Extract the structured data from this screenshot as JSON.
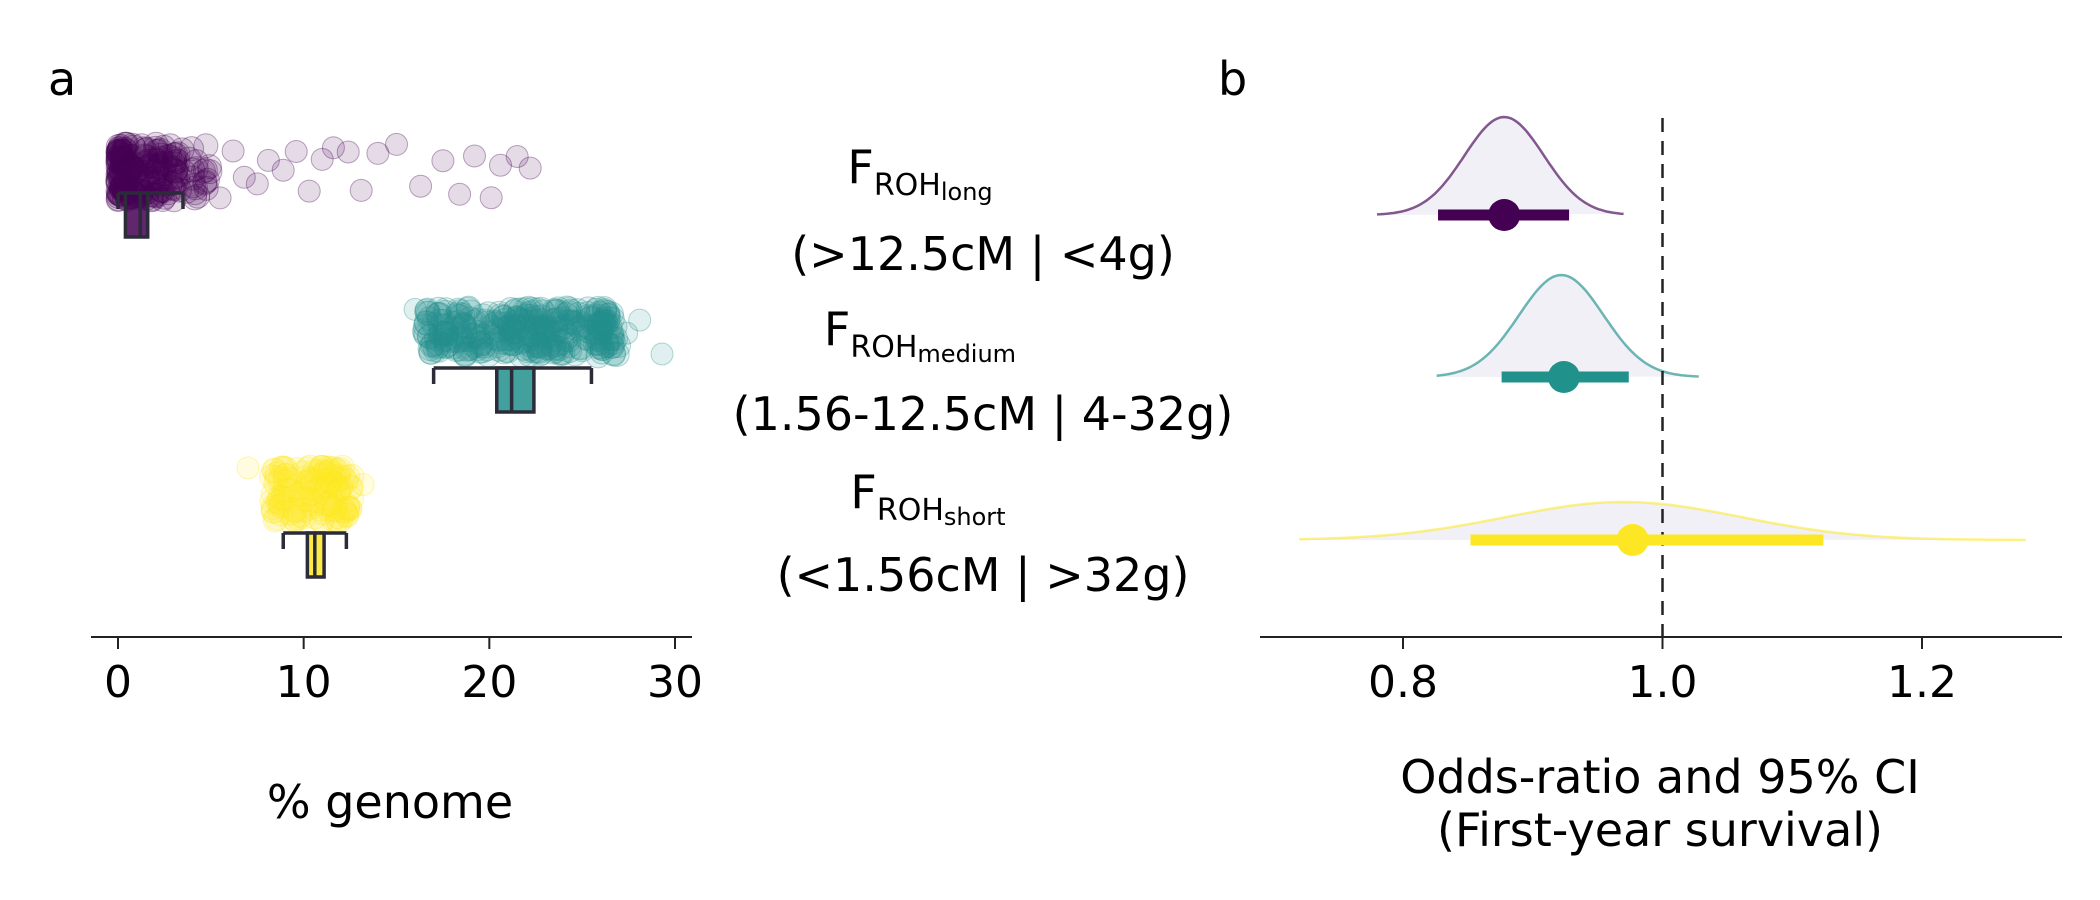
{
  "chart_data": [
    {
      "panel": "a",
      "type": "scatter",
      "xlabel": "% genome",
      "xticks": [
        0,
        10,
        20,
        30
      ],
      "xlim": [
        -1.5,
        31
      ],
      "grid": false,
      "series": [
        {
          "name": "FROH_long",
          "color": "#440154",
          "box": {
            "q1": 0.4,
            "median": 1.2,
            "q3": 1.6,
            "whisker_low": 0.0,
            "whisker_high": 3.5
          },
          "cluster_range": [
            0,
            5
          ],
          "tail_points": [
            5.5,
            6.2,
            6.8,
            7.5,
            8.1,
            8.9,
            9.6,
            10.3,
            11.0,
            11.6,
            12.4,
            13.1,
            14.0,
            15.0,
            16.3,
            17.5,
            18.4,
            19.2,
            20.1,
            20.6,
            21.5,
            22.2
          ]
        },
        {
          "name": "FROH_medium",
          "color": "#21918c",
          "box": {
            "q1": 20.4,
            "median": 21.2,
            "q3": 22.4,
            "whisker_low": 17.0,
            "whisker_high": 25.5
          },
          "cluster_range": [
            16.5,
            27
          ],
          "tail_points": [
            16.0,
            27.4,
            28.1,
            29.3
          ]
        },
        {
          "name": "FROH_short",
          "color": "#fde725",
          "box": {
            "q1": 10.2,
            "median": 10.6,
            "q3": 11.1,
            "whisker_low": 8.9,
            "whisker_high": 12.3
          },
          "cluster_range": [
            8.2,
            12.6
          ],
          "tail_points": [
            7.0,
            13.2
          ]
        }
      ]
    },
    {
      "panel": "b",
      "type": "forest",
      "xlabel": "Odds-ratio and 95% CI",
      "xlabel2": "(First-year survival)",
      "xticks": [
        0.8,
        1.0,
        1.2
      ],
      "xlim": [
        0.695,
        1.31
      ],
      "reference_line": 1.0,
      "grid": false,
      "series": [
        {
          "name": "FROH_long",
          "color": "#440154",
          "estimate": 0.878,
          "ci": [
            0.827,
            0.928
          ],
          "density_range": [
            0.78,
            0.97
          ],
          "density_peak": 0.878
        },
        {
          "name": "FROH_medium",
          "color": "#21918c",
          "estimate": 0.924,
          "ci": [
            0.876,
            0.974
          ],
          "density_range": [
            0.826,
            1.028
          ],
          "density_peak": 0.922
        },
        {
          "name": "FROH_short",
          "color": "#fde725",
          "estimate": 0.977,
          "ci": [
            0.852,
            1.124
          ],
          "density_range": [
            0.72,
            1.28
          ],
          "density_peak": 0.97
        }
      ]
    }
  ],
  "row_labels": [
    {
      "main": "F",
      "sub_main": "ROH",
      "sub_sub": "long",
      "range": "(>12.5cM | <4g)"
    },
    {
      "main": "F",
      "sub_main": "ROH",
      "sub_sub": "medium",
      "range": "(1.56-12.5cM | 4-32g)"
    },
    {
      "main": "F",
      "sub_main": "ROH",
      "sub_sub": "short",
      "range": "(<1.56cM | >32g)"
    }
  ],
  "panel_letters": [
    "a",
    "b"
  ]
}
